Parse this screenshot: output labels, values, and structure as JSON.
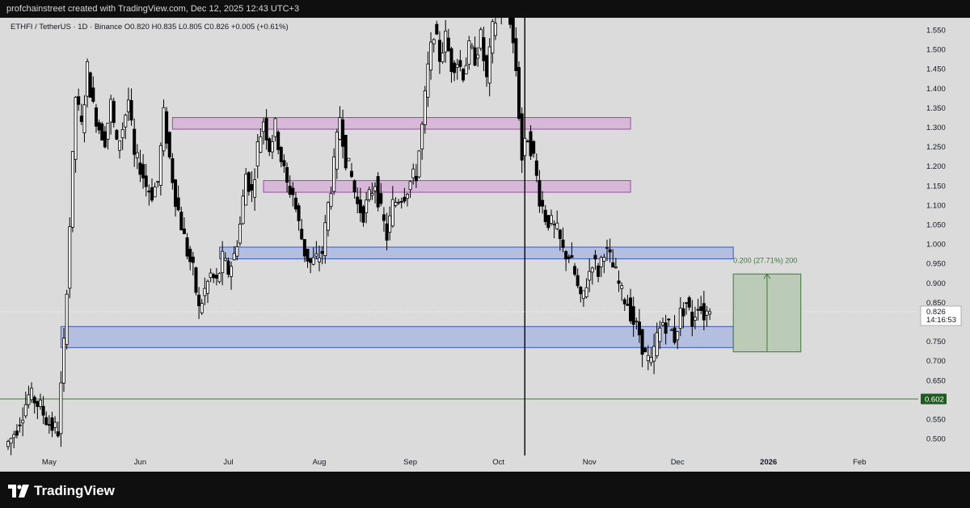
{
  "header": {
    "created_text": "profchainstreet created with TradingView.com, Dec 12, 2025 12:43 UTC+3"
  },
  "legend": {
    "text": "ETHFI / TetherUS · 1D · Binance  O0.820  H0.835  L0.805  C0.826  +0.005 (+0.61%)"
  },
  "footer": {
    "brand": "TradingView"
  },
  "colors": {
    "background": "#dbdbdb",
    "candle_up": "#ffffff",
    "candle_down": "#000000",
    "purple_zone_fill": "#d7b8d9",
    "purple_zone_stroke": "#9c4aa8",
    "blue_zone_fill": "#b4bfdf",
    "blue_zone_stroke": "#3a58c8",
    "target_fill": "#bccbb7",
    "target_stroke": "#3d7a3a",
    "level_line": "#3d7a3a"
  },
  "chart_data": {
    "type": "candlestick",
    "symbol": "ETHFI / TetherUS",
    "interval": "1D",
    "exchange": "Binance",
    "ohlc_last": {
      "open": 0.82,
      "high": 0.835,
      "low": 0.805,
      "close": 0.826,
      "change": "+0.005",
      "change_pct": "+0.61%"
    },
    "y_axis": {
      "ticks": [
        "1.550",
        "1.500",
        "1.450",
        "1.400",
        "1.350",
        "1.300",
        "1.250",
        "1.200",
        "1.150",
        "1.100",
        "1.050",
        "1.000",
        "0.950",
        "0.900",
        "0.850",
        "0.800",
        "0.750",
        "0.700",
        "0.650",
        "0.600",
        "0.550",
        "0.500"
      ],
      "range": [
        0.465,
        1.575
      ]
    },
    "x_axis": {
      "ticks": [
        {
          "label": "May",
          "date": "2025-05-01",
          "bold": false
        },
        {
          "label": "Jun",
          "date": "2025-06-01",
          "bold": false
        },
        {
          "label": "Jul",
          "date": "2025-07-01",
          "bold": false
        },
        {
          "label": "Aug",
          "date": "2025-08-01",
          "bold": false
        },
        {
          "label": "Sep",
          "date": "2025-09-01",
          "bold": false
        },
        {
          "label": "Oct",
          "date": "2025-10-01",
          "bold": false
        },
        {
          "label": "Nov",
          "date": "2025-11-01",
          "bold": false
        },
        {
          "label": "Dec",
          "date": "2025-12-01",
          "bold": false
        },
        {
          "label": "2026",
          "date": "2026-01-01",
          "bold": true
        },
        {
          "label": "Feb",
          "date": "2026-02-01",
          "bold": false
        }
      ],
      "range": [
        "2025-04-17",
        "2026-02-21"
      ]
    },
    "series_close": [
      [
        "2025-04-17",
        0.48
      ],
      [
        "2025-04-19",
        0.5
      ],
      [
        "2025-04-21",
        0.53
      ],
      [
        "2025-04-23",
        0.57
      ],
      [
        "2025-04-25",
        0.61
      ],
      [
        "2025-04-27",
        0.6
      ],
      [
        "2025-04-29",
        0.58
      ],
      [
        "2025-05-01",
        0.55
      ],
      [
        "2025-05-03",
        0.53
      ],
      [
        "2025-05-05",
        0.52
      ],
      [
        "2025-05-07",
        0.74
      ],
      [
        "2025-05-09",
        1.05
      ],
      [
        "2025-05-11",
        1.38
      ],
      [
        "2025-05-13",
        1.3
      ],
      [
        "2025-05-15",
        1.45
      ],
      [
        "2025-05-17",
        1.35
      ],
      [
        "2025-05-19",
        1.3
      ],
      [
        "2025-05-21",
        1.27
      ],
      [
        "2025-05-23",
        1.36
      ],
      [
        "2025-05-25",
        1.25
      ],
      [
        "2025-05-27",
        1.3
      ],
      [
        "2025-05-29",
        1.37
      ],
      [
        "2025-05-31",
        1.22
      ],
      [
        "2025-06-02",
        1.2
      ],
      [
        "2025-06-04",
        1.15
      ],
      [
        "2025-06-06",
        1.13
      ],
      [
        "2025-06-08",
        1.16
      ],
      [
        "2025-06-10",
        1.33
      ],
      [
        "2025-06-12",
        1.22
      ],
      [
        "2025-06-14",
        1.12
      ],
      [
        "2025-06-16",
        1.05
      ],
      [
        "2025-06-18",
        0.98
      ],
      [
        "2025-06-20",
        0.93
      ],
      [
        "2025-06-22",
        0.83
      ],
      [
        "2025-06-24",
        0.88
      ],
      [
        "2025-06-26",
        0.92
      ],
      [
        "2025-06-28",
        0.9
      ],
      [
        "2025-06-30",
        0.96
      ],
      [
        "2025-07-02",
        0.93
      ],
      [
        "2025-07-04",
        0.97
      ],
      [
        "2025-07-06",
        1.05
      ],
      [
        "2025-07-08",
        1.18
      ],
      [
        "2025-07-10",
        1.13
      ],
      [
        "2025-07-12",
        1.25
      ],
      [
        "2025-07-14",
        1.32
      ],
      [
        "2025-07-16",
        1.25
      ],
      [
        "2025-07-18",
        1.3
      ],
      [
        "2025-07-20",
        1.22
      ],
      [
        "2025-07-22",
        1.15
      ],
      [
        "2025-07-24",
        1.13
      ],
      [
        "2025-07-26",
        1.05
      ],
      [
        "2025-07-28",
        0.98
      ],
      [
        "2025-07-30",
        0.95
      ],
      [
        "2025-08-01",
        0.96
      ],
      [
        "2025-08-03",
        0.98
      ],
      [
        "2025-08-05",
        1.1
      ],
      [
        "2025-08-07",
        1.2
      ],
      [
        "2025-08-09",
        1.33
      ],
      [
        "2025-08-11",
        1.22
      ],
      [
        "2025-08-13",
        1.17
      ],
      [
        "2025-08-15",
        1.1
      ],
      [
        "2025-08-17",
        1.08
      ],
      [
        "2025-08-19",
        1.12
      ],
      [
        "2025-08-21",
        1.16
      ],
      [
        "2025-08-23",
        1.08
      ],
      [
        "2025-08-25",
        1.02
      ],
      [
        "2025-08-27",
        1.1
      ],
      [
        "2025-08-29",
        1.12
      ],
      [
        "2025-08-31",
        1.13
      ],
      [
        "2025-09-02",
        1.16
      ],
      [
        "2025-09-04",
        1.18
      ],
      [
        "2025-09-06",
        1.3
      ],
      [
        "2025-09-08",
        1.45
      ],
      [
        "2025-09-10",
        1.55
      ],
      [
        "2025-09-12",
        1.48
      ],
      [
        "2025-09-14",
        1.53
      ],
      [
        "2025-09-16",
        1.46
      ],
      [
        "2025-09-18",
        1.47
      ],
      [
        "2025-09-20",
        1.44
      ],
      [
        "2025-09-22",
        1.5
      ],
      [
        "2025-09-24",
        1.48
      ],
      [
        "2025-09-26",
        1.53
      ],
      [
        "2025-09-28",
        1.42
      ],
      [
        "2025-09-30",
        1.55
      ],
      [
        "2025-10-02",
        1.6
      ],
      [
        "2025-10-04",
        1.62
      ],
      [
        "2025-10-06",
        1.58
      ],
      [
        "2025-10-08",
        1.45
      ],
      [
        "2025-10-10",
        1.22
      ],
      [
        "2025-10-12",
        1.28
      ],
      [
        "2025-10-14",
        1.22
      ],
      [
        "2025-10-16",
        1.12
      ],
      [
        "2025-10-18",
        1.07
      ],
      [
        "2025-10-20",
        1.05
      ],
      [
        "2025-10-22",
        1.03
      ],
      [
        "2025-10-24",
        0.98
      ],
      [
        "2025-10-26",
        0.97
      ],
      [
        "2025-10-28",
        0.92
      ],
      [
        "2025-10-30",
        0.85
      ],
      [
        "2025-11-01",
        0.9
      ],
      [
        "2025-11-03",
        0.96
      ],
      [
        "2025-11-05",
        0.93
      ],
      [
        "2025-11-07",
        0.99
      ],
      [
        "2025-11-09",
        0.96
      ],
      [
        "2025-11-11",
        0.92
      ],
      [
        "2025-11-13",
        0.87
      ],
      [
        "2025-11-15",
        0.85
      ],
      [
        "2025-11-17",
        0.8
      ],
      [
        "2025-11-19",
        0.77
      ],
      [
        "2025-11-21",
        0.71
      ],
      [
        "2025-11-23",
        0.69
      ],
      [
        "2025-11-25",
        0.76
      ],
      [
        "2025-11-27",
        0.8
      ],
      [
        "2025-11-29",
        0.79
      ],
      [
        "2025-12-01",
        0.76
      ],
      [
        "2025-12-03",
        0.82
      ],
      [
        "2025-12-05",
        0.85
      ],
      [
        "2025-12-07",
        0.8
      ],
      [
        "2025-12-09",
        0.85
      ],
      [
        "2025-12-11",
        0.82
      ],
      [
        "2025-12-12",
        0.826
      ]
    ],
    "zones": [
      {
        "kind": "supply",
        "color": "purple",
        "start": "2025-06-12",
        "end": "2025-11-15",
        "low": 1.295,
        "high": 1.325
      },
      {
        "kind": "supply",
        "color": "purple",
        "start": "2025-07-13",
        "end": "2025-11-15",
        "low": 1.133,
        "high": 1.163
      },
      {
        "kind": "demand",
        "color": "blue",
        "start": "2025-06-28",
        "end": "2025-12-20",
        "low": 0.962,
        "high": 0.992
      },
      {
        "kind": "demand",
        "color": "blue",
        "start": "2025-05-05",
        "end": "2025-12-20",
        "low": 0.734,
        "high": 0.788
      }
    ],
    "target_box": {
      "start": "2025-12-20",
      "end": "2026-01-12",
      "low": 0.723,
      "high": 0.923,
      "label": "0.200 (27.71%) 200"
    },
    "horizontal_level": {
      "value": 0.602,
      "label": "0.602"
    },
    "vertical_line": {
      "date": "2025-10-10"
    },
    "current_price": {
      "value": 0.826,
      "label": "0.826",
      "countdown": "14:16:53"
    },
    "grid": false
  }
}
